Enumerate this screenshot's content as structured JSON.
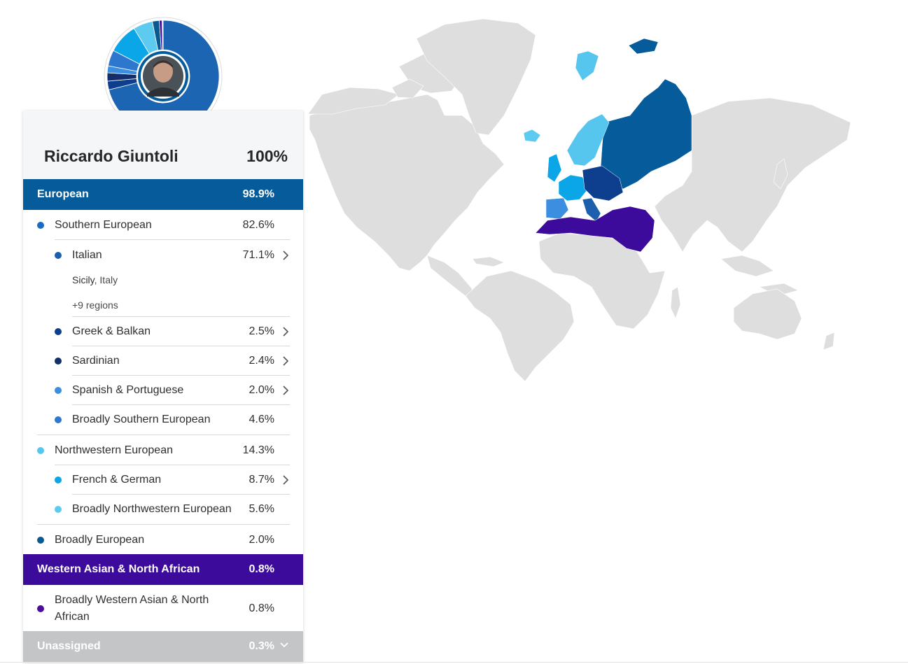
{
  "user": {
    "name": "Riccardo Giuntoli",
    "total": "100%"
  },
  "colors": {
    "european": "#065b9a",
    "southern": "#1a6bc4",
    "italian": "#1c5fad",
    "greek_balkan": "#0e3f8f",
    "sardinian": "#122f6b",
    "spanish_portuguese": "#3b8ee0",
    "broad_southern": "#2e77cf",
    "northwestern": "#56c6ee",
    "french_german": "#0aa6e8",
    "broad_northwestern": "#5ccbef",
    "broad_european": "#0b5a8f",
    "wana": "#3d0b9c",
    "wana_dot": "#4a0d9e",
    "unassigned": "#c4c5c6",
    "map_gray": "#dedede"
  },
  "groups": {
    "european": {
      "label": "European",
      "pct": "98.9%"
    },
    "wana": {
      "label": "Western Asian & North African",
      "pct": "0.8%"
    },
    "unassigned": {
      "label": "Unassigned",
      "pct": "0.3%",
      "icon": "chevron-down-icon"
    }
  },
  "rows": {
    "southern": {
      "label": "Southern European",
      "pct": "82.6%"
    },
    "italian": {
      "label": "Italian",
      "pct": "71.1%",
      "region_bold": "Sicily",
      "region_rest": ", Italy",
      "more": "+9 regions"
    },
    "greek": {
      "label": "Greek & Balkan",
      "pct": "2.5%"
    },
    "sardinian": {
      "label": "Sardinian",
      "pct": "2.4%"
    },
    "spanish": {
      "label": "Spanish & Portuguese",
      "pct": "2.0%"
    },
    "broad_southern": {
      "label": "Broadly Southern European",
      "pct": "4.6%"
    },
    "northwestern": {
      "label": "Northwestern European",
      "pct": "14.3%"
    },
    "french": {
      "label": "French & German",
      "pct": "8.7%"
    },
    "broad_northwestern": {
      "label": "Broadly Northwestern European",
      "pct": "5.6%"
    },
    "broad_european": {
      "label": "Broadly European",
      "pct": "2.0%"
    },
    "broad_wana": {
      "label_line1": "Broadly Western Asian & North",
      "label_line2": "African",
      "pct": "0.8%"
    }
  },
  "donut": {
    "segments": [
      {
        "name": "italian",
        "value": 71.1,
        "color": "#1c65b3"
      },
      {
        "name": "greek-balkan",
        "value": 2.5,
        "color": "#0e3f8f"
      },
      {
        "name": "sardinian",
        "value": 2.4,
        "color": "#122f6b"
      },
      {
        "name": "spanish-portuguese",
        "value": 2.0,
        "color": "#3b8ee0"
      },
      {
        "name": "broad-southern",
        "value": 4.6,
        "color": "#2e77cf"
      },
      {
        "name": "french-german",
        "value": 8.7,
        "color": "#0aa6e8"
      },
      {
        "name": "broad-northwestern",
        "value": 5.6,
        "color": "#5ccbef"
      },
      {
        "name": "broad-european",
        "value": 2.0,
        "color": "#0b5a8f"
      },
      {
        "name": "wana",
        "value": 0.8,
        "color": "#3d0b9c"
      },
      {
        "name": "unassigned",
        "value": 0.3,
        "color": "#c4c5c6"
      }
    ]
  }
}
